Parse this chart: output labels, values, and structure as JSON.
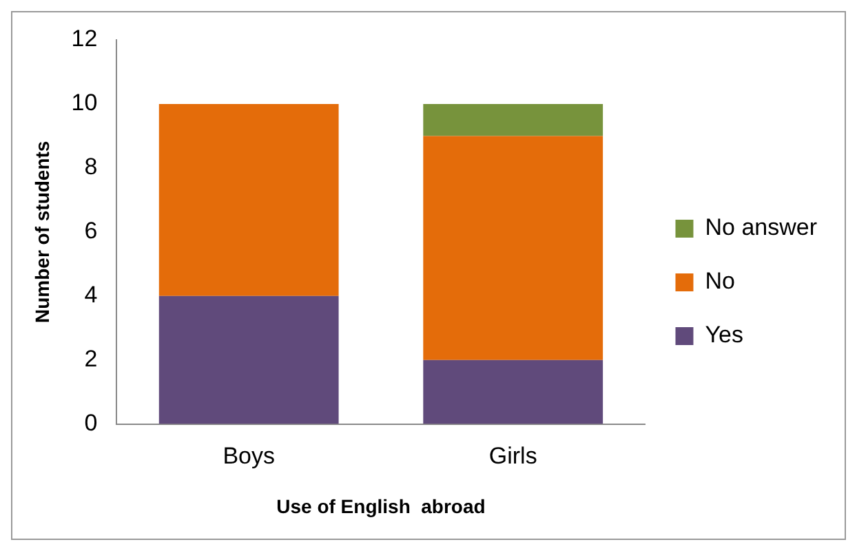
{
  "chart_data": {
    "type": "bar",
    "stacked": true,
    "xlabel": "Use of English  abroad",
    "ylabel": "Number of students",
    "categories": [
      "Boys",
      "Girls"
    ],
    "series": [
      {
        "name": "Yes",
        "color": "#604a7b",
        "values": [
          4,
          2
        ]
      },
      {
        "name": "No",
        "color": "#e46c0a",
        "values": [
          6,
          7
        ]
      },
      {
        "name": "No answer",
        "color": "#77933c",
        "values": [
          0,
          1
        ]
      }
    ],
    "ylim": [
      0,
      12
    ],
    "yticks": [
      0,
      2,
      4,
      6,
      8,
      10,
      12
    ],
    "grid": false,
    "legend": "right"
  }
}
